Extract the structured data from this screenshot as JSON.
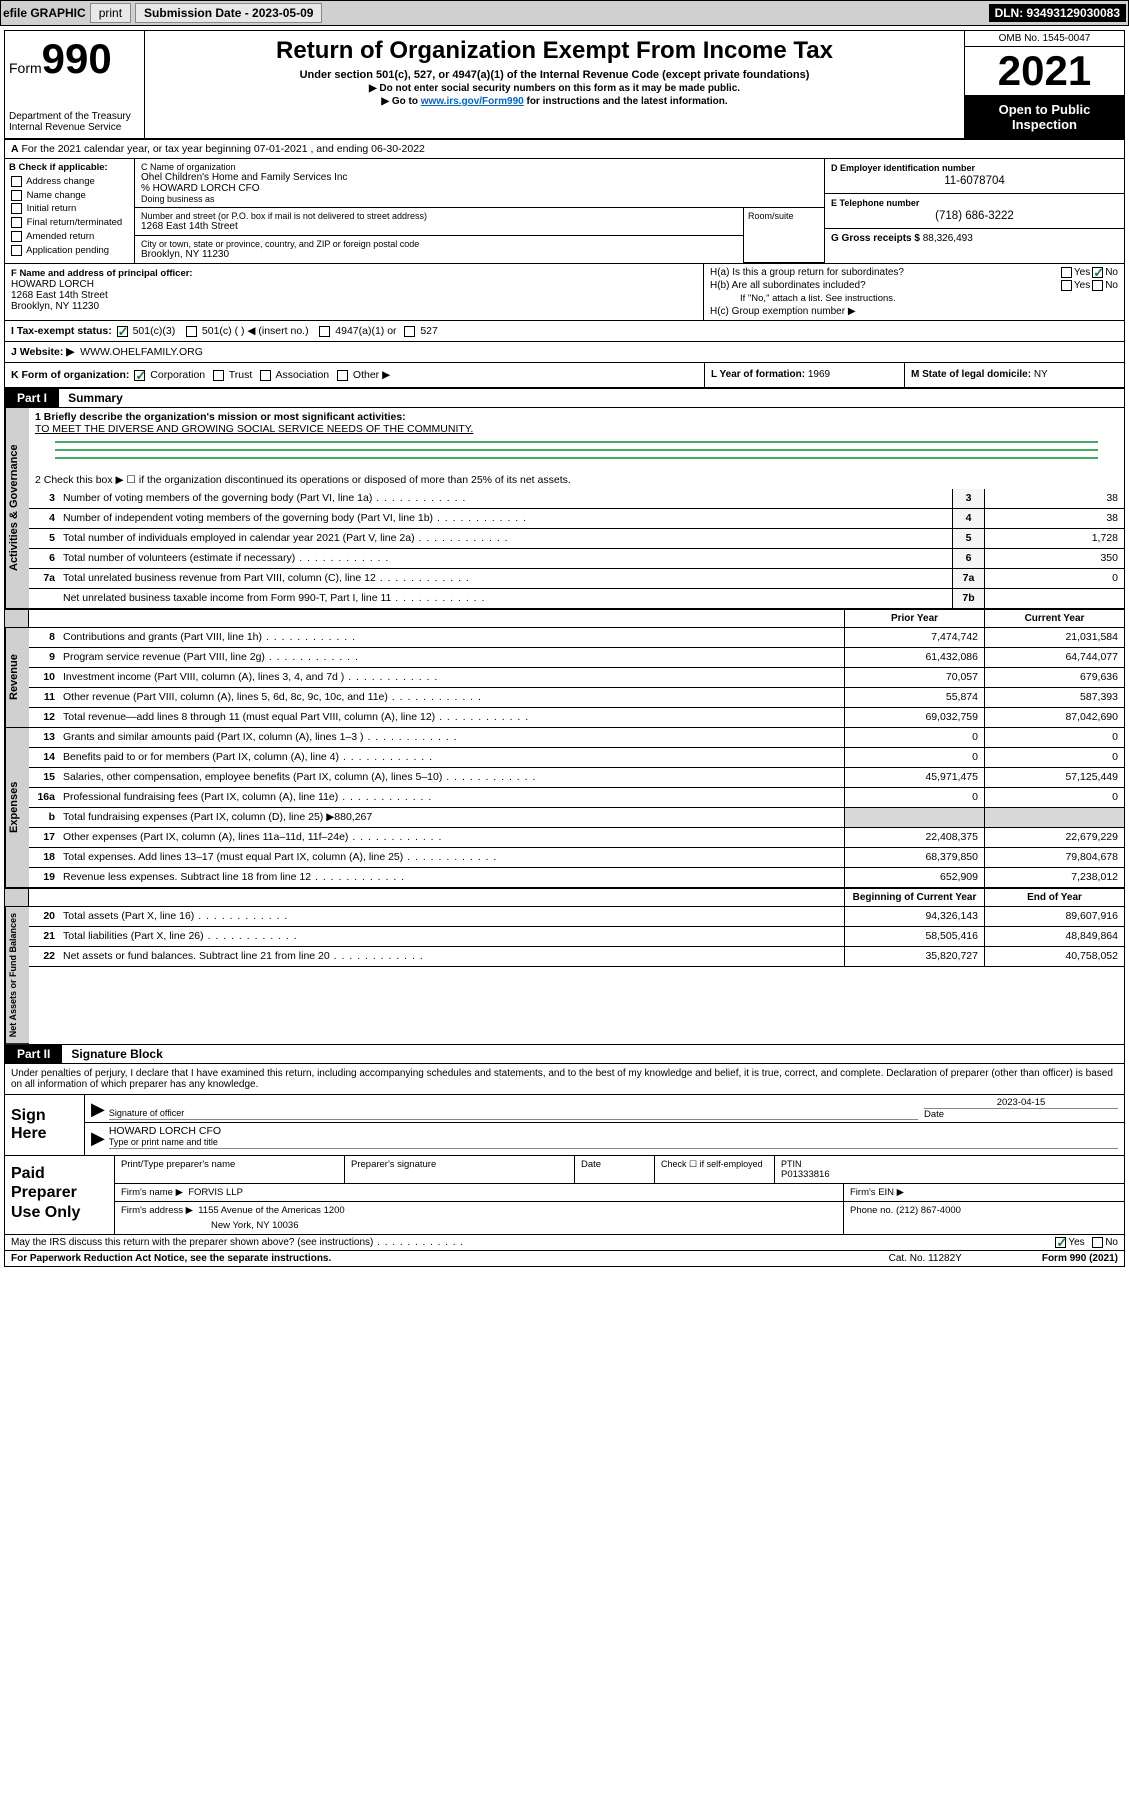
{
  "top_bar": {
    "efile_label": "efile GRAPHIC",
    "print_btn": "print",
    "sub_date_label": "Submission Date - 2023-05-09",
    "dln": "DLN: 93493129030083"
  },
  "header": {
    "form_label": "Form",
    "form_number": "990",
    "dept": "Department of the Treasury",
    "irs": "Internal Revenue Service",
    "title": "Return of Organization Exempt From Income Tax",
    "subtitle": "Under section 501(c), 527, or 4947(a)(1) of the Internal Revenue Code (except private foundations)",
    "note1": "▶ Do not enter social security numbers on this form as it may be made public.",
    "note2_pre": "▶ Go to ",
    "note2_link": "www.irs.gov/Form990",
    "note2_post": " for instructions and the latest information.",
    "omb": "OMB No. 1545-0047",
    "year": "2021",
    "open_public": "Open to Public Inspection"
  },
  "row_a": {
    "label_a": "A",
    "text": "For the 2021 calendar year, or tax year beginning 07-01-2021    , and ending 06-30-2022"
  },
  "col_b": {
    "label": "B Check if applicable:",
    "items": [
      "Address change",
      "Name change",
      "Initial return",
      "Final return/terminated",
      "Amended return",
      "Application pending"
    ]
  },
  "col_c": {
    "name_lbl": "C Name of organization",
    "name": "Ohel Children's Home and Family Services Inc",
    "care_of": "% HOWARD LORCH CFO",
    "dba_lbl": "Doing business as",
    "street_lbl": "Number and street (or P.O. box if mail is not delivered to street address)",
    "street": "1268 East 14th Street",
    "room_lbl": "Room/suite",
    "city_lbl": "City or town, state or province, country, and ZIP or foreign postal code",
    "city": "Brooklyn, NY  11230"
  },
  "col_d": {
    "lbl": "D Employer identification number",
    "val": "11-6078704"
  },
  "col_e": {
    "lbl": "E Telephone number",
    "val": "(718) 686-3222"
  },
  "col_g": {
    "lbl": "G Gross receipts $",
    "val": "88,326,493"
  },
  "row_f": {
    "lbl": "F Name and address of principal officer:",
    "name": "HOWARD LORCH",
    "street": "1268 East 14th Street",
    "city": "Brooklyn, NY  11230"
  },
  "row_h": {
    "ha": "H(a)  Is this a group return for subordinates?",
    "hb": "H(b)  Are all subordinates included?",
    "hb_note": "If \"No,\" attach a list. See instructions.",
    "hc": "H(c)  Group exemption number ▶",
    "yes": "Yes",
    "no": "No"
  },
  "row_i": {
    "lbl": "I    Tax-exempt status:",
    "o1": "501(c)(3)",
    "o2": "501(c) (   ) ◀ (insert no.)",
    "o3": "4947(a)(1) or",
    "o4": "527"
  },
  "row_j": {
    "lbl": "J   Website: ▶",
    "val": "WWW.OHELFAMILY.ORG"
  },
  "row_k": {
    "lbl": "K Form of organization:",
    "corp": "Corporation",
    "trust": "Trust",
    "assoc": "Association",
    "other": "Other ▶"
  },
  "col_l": {
    "lbl": "L Year of formation:",
    "val": "1969"
  },
  "col_m": {
    "lbl": "M State of legal domicile:",
    "val": "NY"
  },
  "parts": {
    "p1": "Part I",
    "p1_title": "Summary",
    "p2": "Part II",
    "p2_title": "Signature Block"
  },
  "summary": {
    "q1_lbl": "1   Briefly describe the organization's mission or most significant activities:",
    "q1_val": "TO MEET THE DIVERSE AND GROWING SOCIAL SERVICE NEEDS OF THE COMMUNITY.",
    "q2": "2   Check this box ▶ ☐  if the organization discontinued its operations or disposed of more than 25% of its net assets.",
    "side_gov": "Activities & Governance",
    "side_rev": "Revenue",
    "side_exp": "Expenses",
    "side_net": "Net Assets or Fund Balances",
    "hdr_prior": "Prior Year",
    "hdr_curr": "Current Year",
    "hdr_beg": "Beginning of Current Year",
    "hdr_end": "End of Year",
    "rows_gov": [
      {
        "n": "3",
        "t": "Number of voting members of the governing body (Part VI, line 1a)",
        "c": "3",
        "v": "38"
      },
      {
        "n": "4",
        "t": "Number of independent voting members of the governing body (Part VI, line 1b)",
        "c": "4",
        "v": "38"
      },
      {
        "n": "5",
        "t": "Total number of individuals employed in calendar year 2021 (Part V, line 2a)",
        "c": "5",
        "v": "1,728"
      },
      {
        "n": "6",
        "t": "Total number of volunteers (estimate if necessary)",
        "c": "6",
        "v": "350"
      },
      {
        "n": "7a",
        "t": "Total unrelated business revenue from Part VIII, column (C), line 12",
        "c": "7a",
        "v": "0"
      },
      {
        "n": "",
        "t": "Net unrelated business taxable income from Form 990-T, Part I, line 11",
        "c": "7b",
        "v": ""
      }
    ],
    "rows_rev": [
      {
        "n": "8",
        "t": "Contributions and grants (Part VIII, line 1h)",
        "p": "7,474,742",
        "c": "21,031,584"
      },
      {
        "n": "9",
        "t": "Program service revenue (Part VIII, line 2g)",
        "p": "61,432,086",
        "c": "64,744,077"
      },
      {
        "n": "10",
        "t": "Investment income (Part VIII, column (A), lines 3, 4, and 7d )",
        "p": "70,057",
        "c": "679,636"
      },
      {
        "n": "11",
        "t": "Other revenue (Part VIII, column (A), lines 5, 6d, 8c, 9c, 10c, and 11e)",
        "p": "55,874",
        "c": "587,393"
      },
      {
        "n": "12",
        "t": "Total revenue—add lines 8 through 11 (must equal Part VIII, column (A), line 12)",
        "p": "69,032,759",
        "c": "87,042,690"
      }
    ],
    "rows_exp": [
      {
        "n": "13",
        "t": "Grants and similar amounts paid (Part IX, column (A), lines 1–3 )",
        "p": "0",
        "c": "0"
      },
      {
        "n": "14",
        "t": "Benefits paid to or for members (Part IX, column (A), line 4)",
        "p": "0",
        "c": "0"
      },
      {
        "n": "15",
        "t": "Salaries, other compensation, employee benefits (Part IX, column (A), lines 5–10)",
        "p": "45,971,475",
        "c": "57,125,449"
      },
      {
        "n": "16a",
        "t": "Professional fundraising fees (Part IX, column (A), line 11e)",
        "p": "0",
        "c": "0"
      }
    ],
    "row_16b": {
      "n": "b",
      "t": "Total fundraising expenses (Part IX, column (D), line 25) ▶880,267"
    },
    "rows_exp2": [
      {
        "n": "17",
        "t": "Other expenses (Part IX, column (A), lines 11a–11d, 11f–24e)",
        "p": "22,408,375",
        "c": "22,679,229"
      },
      {
        "n": "18",
        "t": "Total expenses. Add lines 13–17 (must equal Part IX, column (A), line 25)",
        "p": "68,379,850",
        "c": "79,804,678"
      },
      {
        "n": "19",
        "t": "Revenue less expenses. Subtract line 18 from line 12",
        "p": "652,909",
        "c": "7,238,012"
      }
    ],
    "rows_net": [
      {
        "n": "20",
        "t": "Total assets (Part X, line 16)",
        "p": "94,326,143",
        "c": "89,607,916"
      },
      {
        "n": "21",
        "t": "Total liabilities (Part X, line 26)",
        "p": "58,505,416",
        "c": "48,849,864"
      },
      {
        "n": "22",
        "t": "Net assets or fund balances. Subtract line 21 from line 20",
        "p": "35,820,727",
        "c": "40,758,052"
      }
    ]
  },
  "penalty": "Under penalties of perjury, I declare that I have examined this return, including accompanying schedules and statements, and to the best of my knowledge and belief, it is true, correct, and complete. Declaration of preparer (other than officer) is based on all information of which preparer has any knowledge.",
  "sign": {
    "here": "Sign Here",
    "sig_of_officer": "Signature of officer",
    "date_lbl": "Date",
    "date_val": "2023-04-15",
    "name": "HOWARD LORCH CFO",
    "type_lbl": "Type or print name and title"
  },
  "paid": {
    "title": "Paid Preparer Use Only",
    "print_lbl": "Print/Type preparer's name",
    "prep_sig_lbl": "Preparer's signature",
    "date_lbl": "Date",
    "check_lbl": "Check ☐ if self-employed",
    "ptin_lbl": "PTIN",
    "ptin": "P01333816",
    "firm_name_lbl": "Firm's name    ▶",
    "firm_name": "FORVIS LLP",
    "firm_ein_lbl": "Firm's EIN ▶",
    "firm_addr_lbl": "Firm's address ▶",
    "firm_addr": "1155 Avenue of the Americas 1200",
    "firm_city": "New York, NY  10036",
    "phone_lbl": "Phone no.",
    "phone": "(212) 867-4000"
  },
  "footer": {
    "may_irs": "May the IRS discuss this return with the preparer shown above? (see instructions)",
    "yes": "Yes",
    "no": "No",
    "paperwork": "For Paperwork Reduction Act Notice, see the separate instructions.",
    "cat": "Cat. No. 11282Y",
    "form": "Form 990 (2021)"
  }
}
